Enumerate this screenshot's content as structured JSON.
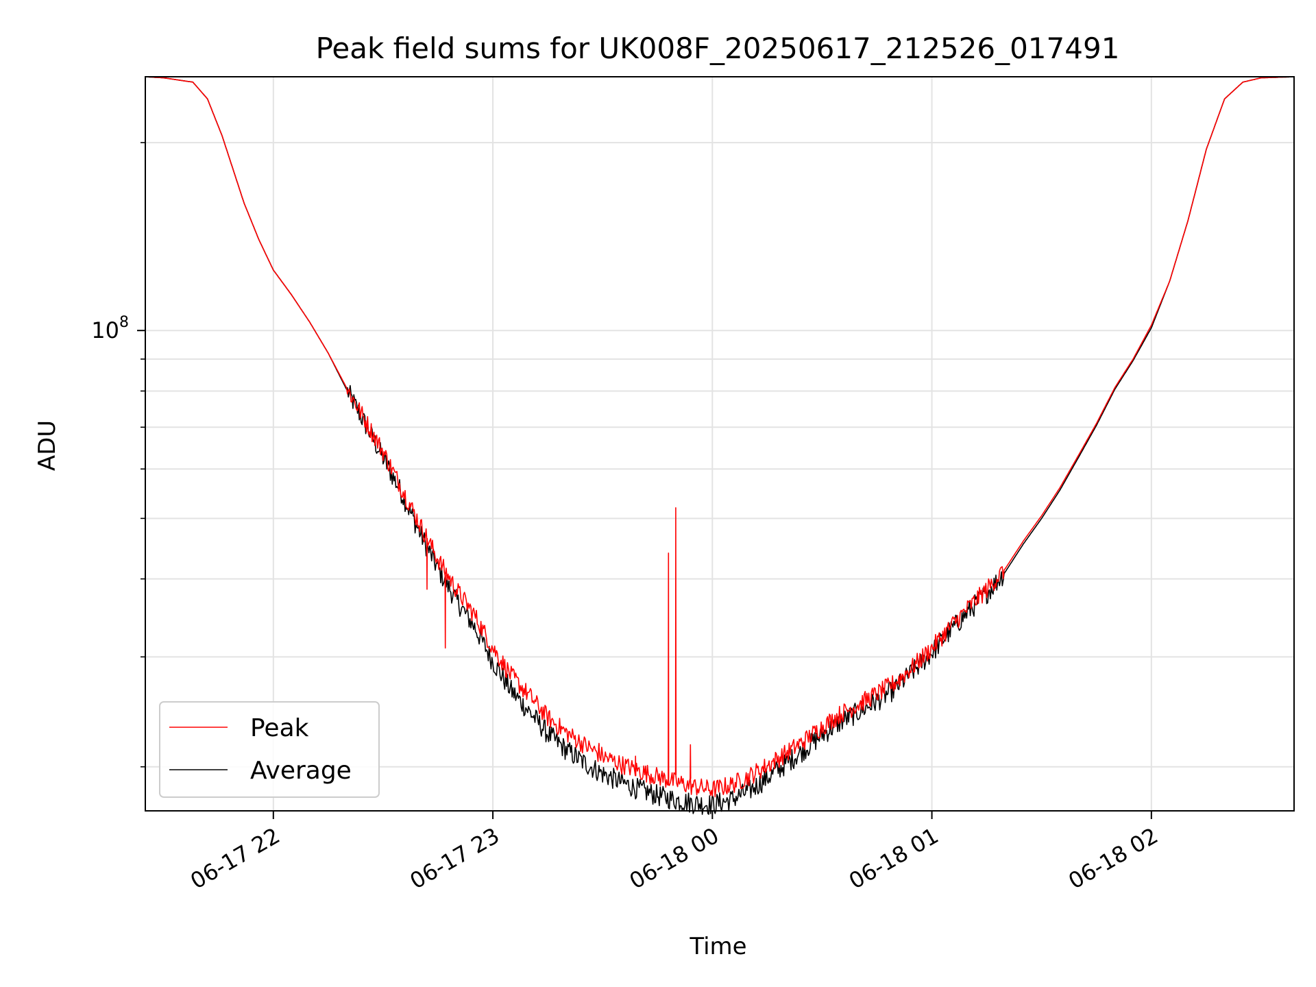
{
  "chart_data": {
    "type": "line",
    "title": "Peak field sums for UK008F_20250617_212526_017491",
    "xlabel": "Time",
    "ylabel": "ADU",
    "x_axis": {
      "kind": "time",
      "range": [
        "2025-06-17T21:25:00",
        "2025-06-18T02:39:00"
      ],
      "ticks": [
        {
          "value": "2025-06-17T22:00:00",
          "label": "06-17 22"
        },
        {
          "value": "2025-06-17T23:00:00",
          "label": "06-17 23"
        },
        {
          "value": "2025-06-18T00:00:00",
          "label": "06-18 00"
        },
        {
          "value": "2025-06-18T01:00:00",
          "label": "06-18 01"
        },
        {
          "value": "2025-06-18T02:00:00",
          "label": "06-18 02"
        }
      ]
    },
    "y_axis": {
      "scale": "log",
      "range": [
        17000000,
        255000000
      ],
      "major_ticks": [
        {
          "value": 100000000,
          "label_base": "10",
          "label_exp": "8"
        }
      ],
      "minor_ticks": [
        20000000,
        30000000,
        40000000,
        50000000,
        60000000,
        70000000,
        80000000,
        90000000,
        200000000
      ]
    },
    "grid": true,
    "legend": {
      "placement": "lower-left"
    },
    "series": [
      {
        "name": "Peak",
        "color": "#ff0000",
        "points": [
          [
            "2025-06-17T21:25:00",
            255000000
          ],
          [
            "2025-06-17T21:30:00",
            254000000
          ],
          [
            "2025-06-17T21:38:00",
            250000000
          ],
          [
            "2025-06-17T21:42:00",
            235000000
          ],
          [
            "2025-06-17T21:46:00",
            205000000
          ],
          [
            "2025-06-17T21:52:00",
            160000000
          ],
          [
            "2025-06-17T21:56:00",
            140000000
          ],
          [
            "2025-06-17T22:00:00",
            125000000
          ],
          [
            "2025-06-17T22:05:00",
            114000000
          ],
          [
            "2025-06-17T22:10:00",
            103000000
          ],
          [
            "2025-06-17T22:15:00",
            92000000
          ],
          [
            "2025-06-17T22:20:00",
            81000000
          ],
          [
            "2025-06-17T22:25:00",
            72000000
          ],
          [
            "2025-06-17T22:30:00",
            64000000
          ],
          [
            "2025-06-17T22:35:00",
            56000000
          ],
          [
            "2025-06-17T22:40:00",
            49000000
          ],
          [
            "2025-06-17T22:45:00",
            43000000
          ],
          [
            "2025-06-17T22:50:00",
            38500000
          ],
          [
            "2025-06-17T22:55:00",
            35000000
          ],
          [
            "2025-06-17T23:00:00",
            31000000
          ],
          [
            "2025-06-17T23:05:00",
            28000000
          ],
          [
            "2025-06-17T23:10:00",
            26000000
          ],
          [
            "2025-06-17T23:15:00",
            24000000
          ],
          [
            "2025-06-17T23:20:00",
            22700000
          ],
          [
            "2025-06-17T23:25:00",
            21700000
          ],
          [
            "2025-06-17T23:30:00",
            20800000
          ],
          [
            "2025-06-17T23:35:00",
            20200000
          ],
          [
            "2025-06-17T23:40:00",
            19700000
          ],
          [
            "2025-06-17T23:45:00",
            19300000
          ],
          [
            "2025-06-17T23:50:00",
            18900000
          ],
          [
            "2025-06-17T23:55:00",
            18600000
          ],
          [
            "2025-06-18T00:00:00",
            18400000
          ],
          [
            "2025-06-18T00:05:00",
            18700000
          ],
          [
            "2025-06-18T00:10:00",
            19300000
          ],
          [
            "2025-06-18T00:15:00",
            20100000
          ],
          [
            "2025-06-18T00:20:00",
            21000000
          ],
          [
            "2025-06-18T00:25:00",
            22000000
          ],
          [
            "2025-06-18T00:30:00",
            23200000
          ],
          [
            "2025-06-18T00:35:00",
            24300000
          ],
          [
            "2025-06-18T00:40:00",
            25200000
          ],
          [
            "2025-06-18T00:45:00",
            26200000
          ],
          [
            "2025-06-18T00:50:00",
            27300000
          ],
          [
            "2025-06-18T00:55:00",
            29000000
          ],
          [
            "2025-06-18T01:00:00",
            31000000
          ],
          [
            "2025-06-18T01:05:00",
            33500000
          ],
          [
            "2025-06-18T01:10:00",
            36000000
          ],
          [
            "2025-06-18T01:15:00",
            38500000
          ],
          [
            "2025-06-18T01:20:00",
            41500000
          ],
          [
            "2025-06-18T01:25:00",
            46000000
          ],
          [
            "2025-06-18T01:30:00",
            50500000
          ],
          [
            "2025-06-18T01:35:00",
            56000000
          ],
          [
            "2025-06-18T01:40:00",
            63000000
          ],
          [
            "2025-06-18T01:45:00",
            71000000
          ],
          [
            "2025-06-18T01:50:00",
            81000000
          ],
          [
            "2025-06-18T01:55:00",
            90000000
          ],
          [
            "2025-06-18T02:00:00",
            102000000
          ],
          [
            "2025-06-18T02:05:00",
            120000000
          ],
          [
            "2025-06-18T02:10:00",
            150000000
          ],
          [
            "2025-06-18T02:15:00",
            195000000
          ],
          [
            "2025-06-18T02:20:00",
            235000000
          ],
          [
            "2025-06-18T02:25:00",
            250000000
          ],
          [
            "2025-06-18T02:30:00",
            254000000
          ],
          [
            "2025-06-18T02:39:00",
            255000000
          ]
        ],
        "spikes": [
          [
            "2025-06-17T22:42:00",
            38500000
          ],
          [
            "2025-06-17T22:47:00",
            31000000
          ],
          [
            "2025-06-17T23:29:00",
            21800000
          ],
          [
            "2025-06-17T23:39:00",
            20800000
          ],
          [
            "2025-06-17T23:48:00",
            44000000
          ],
          [
            "2025-06-17T23:50:00",
            52000000
          ],
          [
            "2025-06-17T23:54:00",
            21700000
          ]
        ]
      },
      {
        "name": "Average",
        "color": "#000000",
        "points": [
          [
            "2025-06-17T21:25:00",
            255000000
          ],
          [
            "2025-06-17T21:30:00",
            254000000
          ],
          [
            "2025-06-17T21:38:00",
            250000000
          ],
          [
            "2025-06-17T21:42:00",
            235000000
          ],
          [
            "2025-06-17T21:46:00",
            205000000
          ],
          [
            "2025-06-17T21:52:00",
            160000000
          ],
          [
            "2025-06-17T21:56:00",
            140000000
          ],
          [
            "2025-06-17T22:00:00",
            125000000
          ],
          [
            "2025-06-17T22:05:00",
            114000000
          ],
          [
            "2025-06-17T22:10:00",
            103000000
          ],
          [
            "2025-06-17T22:15:00",
            92000000
          ],
          [
            "2025-06-17T22:20:00",
            80500000
          ],
          [
            "2025-06-17T22:25:00",
            71000000
          ],
          [
            "2025-06-17T22:30:00",
            62500000
          ],
          [
            "2025-06-17T22:35:00",
            55000000
          ],
          [
            "2025-06-17T22:40:00",
            47500000
          ],
          [
            "2025-06-17T22:45:00",
            41500000
          ],
          [
            "2025-06-17T22:50:00",
            37000000
          ],
          [
            "2025-06-17T22:55:00",
            33500000
          ],
          [
            "2025-06-17T23:00:00",
            29500000
          ],
          [
            "2025-06-17T23:05:00",
            26500000
          ],
          [
            "2025-06-17T23:10:00",
            24500000
          ],
          [
            "2025-06-17T23:15:00",
            22600000
          ],
          [
            "2025-06-17T23:20:00",
            21300000
          ],
          [
            "2025-06-17T23:25:00",
            20300000
          ],
          [
            "2025-06-17T23:30:00",
            19500000
          ],
          [
            "2025-06-17T23:35:00",
            18900000
          ],
          [
            "2025-06-17T23:40:00",
            18400000
          ],
          [
            "2025-06-17T23:45:00",
            18000000
          ],
          [
            "2025-06-17T23:50:00",
            17700000
          ],
          [
            "2025-06-17T23:55:00",
            17500000
          ],
          [
            "2025-06-18T00:00:00",
            17400000
          ],
          [
            "2025-06-18T00:05:00",
            17700000
          ],
          [
            "2025-06-18T00:10:00",
            18300000
          ],
          [
            "2025-06-18T00:15:00",
            19200000
          ],
          [
            "2025-06-18T00:20:00",
            20200000
          ],
          [
            "2025-06-18T00:25:00",
            21300000
          ],
          [
            "2025-06-18T00:30:00",
            22500000
          ],
          [
            "2025-06-18T00:35:00",
            23600000
          ],
          [
            "2025-06-18T00:40:00",
            24500000
          ],
          [
            "2025-06-18T00:45:00",
            25500000
          ],
          [
            "2025-06-18T00:50:00",
            26700000
          ],
          [
            "2025-06-18T00:55:00",
            28500000
          ],
          [
            "2025-06-18T01:00:00",
            30500000
          ],
          [
            "2025-06-18T01:05:00",
            33000000
          ],
          [
            "2025-06-18T01:10:00",
            35500000
          ],
          [
            "2025-06-18T01:15:00",
            38000000
          ],
          [
            "2025-06-18T01:20:00",
            41000000
          ],
          [
            "2025-06-18T01:25:00",
            45500000
          ],
          [
            "2025-06-18T01:30:00",
            50000000
          ],
          [
            "2025-06-18T01:35:00",
            55500000
          ],
          [
            "2025-06-18T01:40:00",
            62500000
          ],
          [
            "2025-06-18T01:45:00",
            70500000
          ],
          [
            "2025-06-18T01:50:00",
            80500000
          ],
          [
            "2025-06-18T01:55:00",
            89500000
          ],
          [
            "2025-06-18T02:00:00",
            101000000
          ],
          [
            "2025-06-18T02:05:00",
            120000000
          ],
          [
            "2025-06-18T02:10:00",
            150000000
          ],
          [
            "2025-06-18T02:15:00",
            195000000
          ],
          [
            "2025-06-18T02:20:00",
            235000000
          ],
          [
            "2025-06-18T02:25:00",
            250000000
          ],
          [
            "2025-06-18T02:30:00",
            254000000
          ],
          [
            "2025-06-18T02:39:00",
            255000000
          ]
        ]
      }
    ]
  }
}
